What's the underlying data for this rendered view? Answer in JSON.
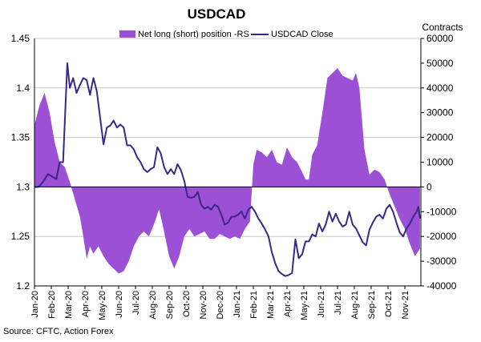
{
  "chart_data": {
    "type": "area+line",
    "title": "USDCAD",
    "right_axis_label": "Contracts",
    "source": "Source: CFTC, Action Forex",
    "left_axis": {
      "min": 1.2,
      "max": 1.45,
      "ticks": [
        "1.2",
        "1.25",
        "1.3",
        "1.35",
        "1.4",
        "1.45"
      ],
      "tick_values": [
        1.2,
        1.25,
        1.3,
        1.35,
        1.4,
        1.45
      ]
    },
    "right_axis": {
      "min": -40000,
      "max": 60000,
      "ticks": [
        "-40000",
        "-30000",
        "-20000",
        "-10000",
        "0",
        "10000",
        "20000",
        "30000",
        "40000",
        "50000",
        "60000"
      ],
      "tick_values": [
        -40000,
        -30000,
        -20000,
        -10000,
        0,
        10000,
        20000,
        30000,
        40000,
        50000,
        60000
      ]
    },
    "x_months": [
      "Jan-20",
      "Feb-20",
      "Mar-20",
      "Apr-20",
      "May-20",
      "Jun-20",
      "Jul-20",
      "Aug-20",
      "Sep-20",
      "Oct-20",
      "Nov-20",
      "Dec-20",
      "Jan-21",
      "Feb-21",
      "Mar-21",
      "Apr-21",
      "May-21",
      "Jun-21",
      "Jul-21",
      "Aug-21",
      "Sep-21",
      "Oct-21",
      "Nov-21"
    ],
    "x_range_months": [
      0,
      22.9
    ],
    "grid": "horizontal",
    "legend_position": "top",
    "series": [
      {
        "name": "Net long (short) position -RS",
        "type": "area",
        "axis": "right",
        "color": "#9b50d6",
        "points": [
          [
            0.0,
            25000
          ],
          [
            0.3,
            33000
          ],
          [
            0.6,
            38000
          ],
          [
            0.9,
            30000
          ],
          [
            1.2,
            18000
          ],
          [
            1.5,
            10000
          ],
          [
            1.8,
            8000
          ],
          [
            2.1,
            2000
          ],
          [
            2.4,
            -5000
          ],
          [
            2.7,
            -12000
          ],
          [
            2.9,
            -20000
          ],
          [
            3.1,
            -29000
          ],
          [
            3.3,
            -24000
          ],
          [
            3.5,
            -27000
          ],
          [
            3.8,
            -24000
          ],
          [
            4.1,
            -28000
          ],
          [
            4.4,
            -31000
          ],
          [
            4.7,
            -33000
          ],
          [
            5.0,
            -35000
          ],
          [
            5.3,
            -34000
          ],
          [
            5.6,
            -30000
          ],
          [
            5.9,
            -24000
          ],
          [
            6.2,
            -20000
          ],
          [
            6.5,
            -18000
          ],
          [
            6.8,
            -20000
          ],
          [
            7.1,
            -15000
          ],
          [
            7.4,
            -9000
          ],
          [
            7.7,
            -18000
          ],
          [
            8.0,
            -28000
          ],
          [
            8.3,
            -33000
          ],
          [
            8.6,
            -28000
          ],
          [
            8.9,
            -20000
          ],
          [
            9.2,
            -17000
          ],
          [
            9.5,
            -20000
          ],
          [
            9.8,
            -19000
          ],
          [
            10.1,
            -18000
          ],
          [
            10.4,
            -21000
          ],
          [
            10.7,
            -21000
          ],
          [
            11.0,
            -19000
          ],
          [
            11.3,
            -20000
          ],
          [
            11.6,
            -21000
          ],
          [
            11.9,
            -20000
          ],
          [
            12.2,
            -21000
          ],
          [
            12.5,
            -17000
          ],
          [
            12.8,
            -14000
          ],
          [
            13.0,
            9000
          ],
          [
            13.2,
            15000
          ],
          [
            13.5,
            14000
          ],
          [
            13.8,
            12000
          ],
          [
            14.1,
            15000
          ],
          [
            14.4,
            10000
          ],
          [
            14.7,
            9000
          ],
          [
            15.0,
            16000
          ],
          [
            15.3,
            12000
          ],
          [
            15.6,
            10000
          ],
          [
            15.9,
            6000
          ],
          [
            16.1,
            3000
          ],
          [
            16.3,
            3000
          ],
          [
            16.5,
            13000
          ],
          [
            16.8,
            17000
          ],
          [
            17.1,
            30000
          ],
          [
            17.4,
            44000
          ],
          [
            17.7,
            46000
          ],
          [
            18.0,
            48000
          ],
          [
            18.3,
            45000
          ],
          [
            18.6,
            44000
          ],
          [
            18.9,
            43000
          ],
          [
            19.1,
            46000
          ],
          [
            19.3,
            40000
          ],
          [
            19.6,
            15000
          ],
          [
            19.9,
            5000
          ],
          [
            20.2,
            7000
          ],
          [
            20.5,
            6000
          ],
          [
            20.8,
            3000
          ],
          [
            21.1,
            -3000
          ],
          [
            21.4,
            -8000
          ],
          [
            21.7,
            -13000
          ],
          [
            22.0,
            -17000
          ],
          [
            22.3,
            -23000
          ],
          [
            22.6,
            -28000
          ],
          [
            22.9,
            -25000
          ],
          [
            23.2,
            -20000
          ],
          [
            23.5,
            -15000
          ],
          [
            23.8,
            4000
          ],
          [
            24.1,
            5000
          ],
          [
            24.4,
            6000
          ],
          [
            24.7,
            8000
          ],
          [
            25.0,
            3000
          ],
          [
            25.3,
            -7000
          ],
          [
            25.6,
            -13000
          ],
          [
            25.9,
            -10000
          ]
        ]
      },
      {
        "name": "USDCAD Close",
        "type": "line",
        "axis": "left",
        "color": "#3b2787",
        "points": [
          [
            0.0,
            1.3
          ],
          [
            0.25,
            1.3
          ],
          [
            0.5,
            1.305
          ],
          [
            0.8,
            1.313
          ],
          [
            1.1,
            1.31
          ],
          [
            1.3,
            1.308
          ],
          [
            1.5,
            1.325
          ],
          [
            1.7,
            1.325
          ],
          [
            1.95,
            1.425
          ],
          [
            2.1,
            1.4
          ],
          [
            2.3,
            1.41
          ],
          [
            2.5,
            1.395
          ],
          [
            2.7,
            1.403
          ],
          [
            2.9,
            1.41
          ],
          [
            3.1,
            1.408
          ],
          [
            3.3,
            1.393
          ],
          [
            3.5,
            1.41
          ],
          [
            3.7,
            1.397
          ],
          [
            3.9,
            1.37
          ],
          [
            4.1,
            1.343
          ],
          [
            4.3,
            1.36
          ],
          [
            4.5,
            1.362
          ],
          [
            4.7,
            1.367
          ],
          [
            4.9,
            1.36
          ],
          [
            5.1,
            1.363
          ],
          [
            5.3,
            1.36
          ],
          [
            5.5,
            1.342
          ],
          [
            5.7,
            1.342
          ],
          [
            5.9,
            1.338
          ],
          [
            6.1,
            1.33
          ],
          [
            6.3,
            1.325
          ],
          [
            6.5,
            1.318
          ],
          [
            6.7,
            1.315
          ],
          [
            6.9,
            1.318
          ],
          [
            7.1,
            1.32
          ],
          [
            7.3,
            1.34
          ],
          [
            7.5,
            1.334
          ],
          [
            7.7,
            1.32
          ],
          [
            7.9,
            1.313
          ],
          [
            8.1,
            1.318
          ],
          [
            8.3,
            1.313
          ],
          [
            8.5,
            1.323
          ],
          [
            8.7,
            1.317
          ],
          [
            8.9,
            1.306
          ],
          [
            9.1,
            1.29
          ],
          [
            9.3,
            1.289
          ],
          [
            9.5,
            1.29
          ],
          [
            9.7,
            1.295
          ],
          [
            9.9,
            1.282
          ],
          [
            10.1,
            1.278
          ],
          [
            10.3,
            1.28
          ],
          [
            10.5,
            1.277
          ],
          [
            10.7,
            1.282
          ],
          [
            10.9,
            1.28
          ],
          [
            11.1,
            1.272
          ],
          [
            11.3,
            1.262
          ],
          [
            11.5,
            1.264
          ],
          [
            11.7,
            1.27
          ],
          [
            11.9,
            1.27
          ],
          [
            12.1,
            1.272
          ],
          [
            12.3,
            1.275
          ],
          [
            12.5,
            1.268
          ],
          [
            12.7,
            1.277
          ],
          [
            12.9,
            1.28
          ],
          [
            13.1,
            1.275
          ],
          [
            13.3,
            1.268
          ],
          [
            13.5,
            1.263
          ],
          [
            13.7,
            1.257
          ],
          [
            13.9,
            1.25
          ],
          [
            14.1,
            1.234
          ],
          [
            14.3,
            1.223
          ],
          [
            14.5,
            1.215
          ],
          [
            14.7,
            1.212
          ],
          [
            14.9,
            1.21
          ],
          [
            15.1,
            1.211
          ],
          [
            15.3,
            1.213
          ],
          [
            15.5,
            1.247
          ],
          [
            15.7,
            1.228
          ],
          [
            15.9,
            1.232
          ],
          [
            16.1,
            1.245
          ],
          [
            16.3,
            1.245
          ],
          [
            16.5,
            1.252
          ],
          [
            16.7,
            1.25
          ],
          [
            16.9,
            1.263
          ],
          [
            17.1,
            1.255
          ],
          [
            17.3,
            1.262
          ],
          [
            17.5,
            1.275
          ],
          [
            17.7,
            1.265
          ],
          [
            17.9,
            1.273
          ],
          [
            18.1,
            1.265
          ],
          [
            18.3,
            1.26
          ],
          [
            18.5,
            1.262
          ],
          [
            18.7,
            1.275
          ],
          [
            18.9,
            1.262
          ],
          [
            19.1,
            1.258
          ],
          [
            19.3,
            1.251
          ],
          [
            19.5,
            1.244
          ],
          [
            19.7,
            1.241
          ],
          [
            19.9,
            1.257
          ],
          [
            20.1,
            1.264
          ],
          [
            20.3,
            1.27
          ],
          [
            20.5,
            1.272
          ],
          [
            20.7,
            1.268
          ],
          [
            20.9,
            1.278
          ],
          [
            21.1,
            1.282
          ],
          [
            21.3,
            1.275
          ],
          [
            21.5,
            1.264
          ],
          [
            21.7,
            1.254
          ],
          [
            21.9,
            1.25
          ],
          [
            22.1,
            1.258
          ],
          [
            22.3,
            1.263
          ],
          [
            22.5,
            1.27
          ],
          [
            22.7,
            1.275
          ],
          [
            22.8,
            1.28
          ],
          [
            22.9,
            1.268
          ]
        ]
      }
    ]
  }
}
